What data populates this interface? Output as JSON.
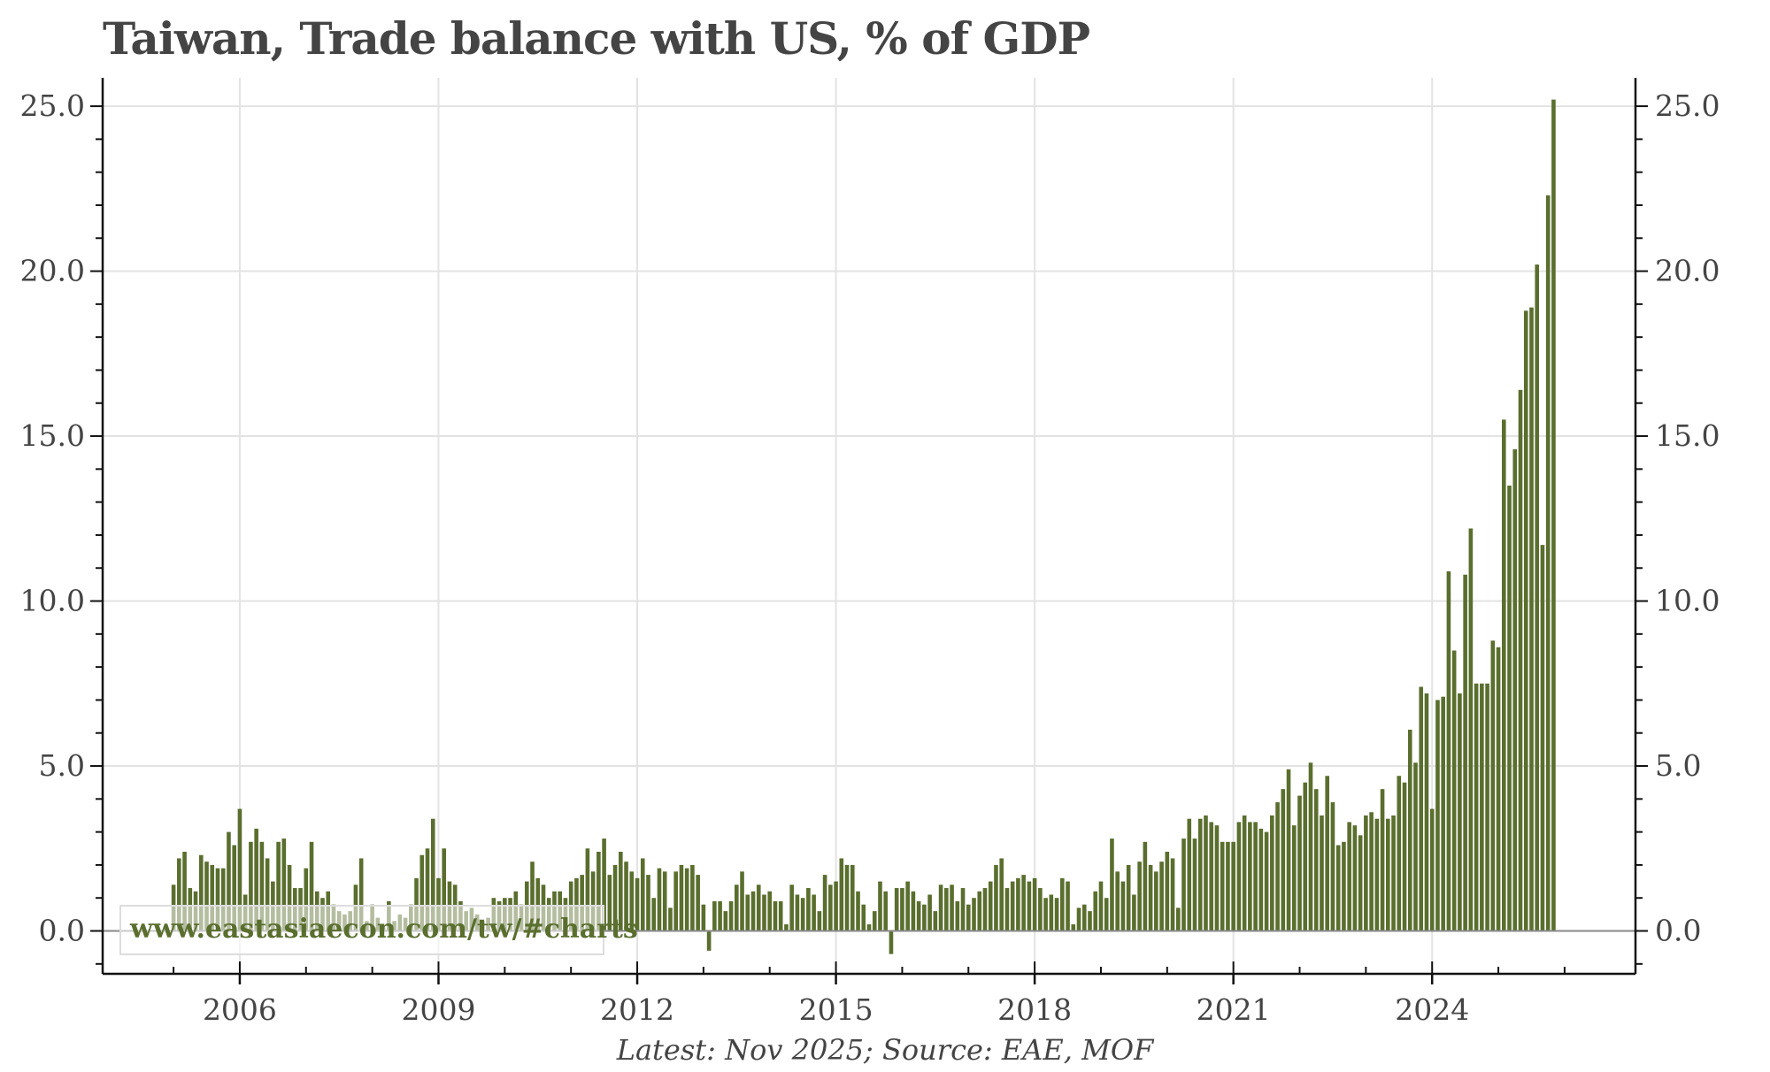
{
  "chart_data": {
    "type": "bar",
    "title": "Taiwan, Trade balance with US, % of GDP",
    "footer": "Latest: Nov 2025; Source: EAE, MOF",
    "watermark": "www.eastasiaecon.com/tw/#charts",
    "frequency": "monthly",
    "start": "2005-01",
    "end": "2025-11",
    "xlim": [
      2003.93,
      2027.07
    ],
    "ylim": [
      -1.3,
      25.86
    ],
    "x_ticks": [
      "2006",
      "2009",
      "2012",
      "2015",
      "2018",
      "2021",
      "2024"
    ],
    "y_ticks": [
      "0.0",
      "5.0",
      "10.0",
      "15.0",
      "20.0",
      "25.0"
    ],
    "grid": true,
    "bar_color": "#5a6e2e",
    "values_by_year": {
      "2005": [
        1.4,
        2.2,
        2.4,
        1.3,
        1.2,
        2.3,
        2.1,
        2.0,
        1.9,
        1.9,
        3.0,
        2.6
      ],
      "2006": [
        3.7,
        1.1,
        2.7,
        3.1,
        2.7,
        2.2,
        1.5,
        2.7,
        2.8,
        2.0,
        1.3,
        1.3
      ],
      "2007": [
        1.9,
        2.7,
        1.2,
        1.0,
        1.2,
        0.8,
        0.6,
        0.5,
        0.6,
        1.4,
        2.2,
        0.3
      ],
      "2008": [
        0.8,
        0.4,
        0.1,
        0.9,
        0.3,
        0.5,
        0.4,
        0.8,
        1.6,
        2.3,
        2.5,
        3.4
      ],
      "2009": [
        1.6,
        2.5,
        1.5,
        1.4,
        0.9,
        0.6,
        0.7,
        0.5,
        0.3,
        0.4,
        1.0,
        0.9
      ],
      "2010": [
        1.0,
        1.0,
        1.2,
        0.8,
        1.5,
        2.1,
        1.6,
        1.4,
        1.0,
        1.2,
        1.2,
        1.0
      ],
      "2011": [
        1.5,
        1.6,
        1.7,
        2.5,
        1.8,
        2.4,
        2.8,
        1.7,
        2.0,
        2.4,
        2.1,
        1.8
      ],
      "2012": [
        1.6,
        2.2,
        1.7,
        1.0,
        1.9,
        1.8,
        0.7,
        1.8,
        2.0,
        1.9,
        2.0,
        1.7
      ],
      "2013": [
        0.8,
        -0.6,
        0.9,
        0.9,
        0.6,
        0.9,
        1.4,
        1.8,
        1.1,
        1.2,
        1.4,
        1.1
      ],
      "2014": [
        1.2,
        0.9,
        0.9,
        0.2,
        1.4,
        1.1,
        1.0,
        1.3,
        1.1,
        0.6,
        1.7,
        1.4
      ],
      "2015": [
        1.5,
        2.2,
        2.0,
        2.0,
        1.2,
        0.8,
        0.2,
        0.6,
        1.5,
        1.2,
        -0.7,
        1.3
      ],
      "2016": [
        1.3,
        1.5,
        1.2,
        0.9,
        0.8,
        1.1,
        0.6,
        1.4,
        1.3,
        1.4,
        0.9,
        1.3
      ],
      "2017": [
        0.8,
        1.0,
        1.2,
        1.3,
        1.5,
        2.0,
        2.2,
        1.3,
        1.5,
        1.6,
        1.7,
        1.5
      ],
      "2018": [
        1.6,
        1.3,
        1.0,
        1.1,
        1.0,
        1.6,
        1.5,
        0.2,
        0.7,
        0.8,
        0.6,
        1.2
      ],
      "2019": [
        1.5,
        1.0,
        2.8,
        1.8,
        1.5,
        2.0,
        1.1,
        2.1,
        2.7,
        2.0,
        1.8,
        2.1
      ],
      "2020": [
        2.4,
        2.2,
        0.7,
        2.8,
        3.4,
        2.8,
        3.4,
        3.5,
        3.3,
        3.2,
        2.7,
        2.7
      ],
      "2021": [
        2.7,
        3.3,
        3.5,
        3.3,
        3.3,
        3.1,
        3.0,
        3.5,
        3.9,
        4.3,
        4.9,
        3.2
      ],
      "2022": [
        4.1,
        4.5,
        5.1,
        4.3,
        3.5,
        4.7,
        3.9,
        2.6,
        2.7,
        3.3,
        3.2,
        2.9
      ],
      "2023": [
        3.5,
        3.6,
        3.4,
        4.3,
        3.4,
        3.5,
        4.7,
        4.5,
        6.1,
        5.1,
        7.4,
        7.2
      ],
      "2024": [
        3.7,
        7.0,
        7.1,
        10.9,
        8.5,
        7.2,
        10.8,
        12.2,
        7.5,
        7.5,
        7.5,
        8.8
      ],
      "2025": [
        8.6,
        15.5,
        13.5,
        14.6,
        16.4,
        18.8,
        18.9,
        20.2,
        11.7,
        22.3,
        25.2
      ]
    }
  }
}
